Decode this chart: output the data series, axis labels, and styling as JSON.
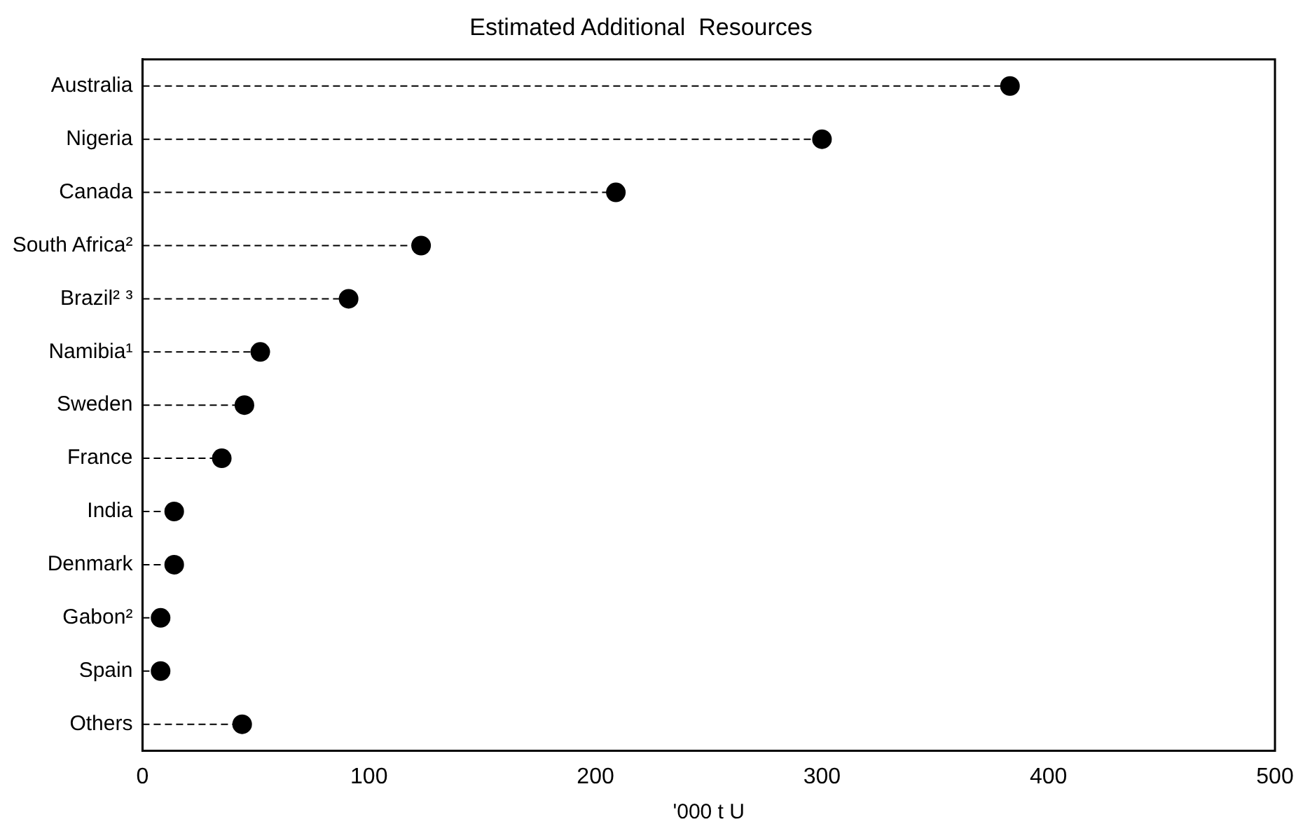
{
  "chart_data": {
    "type": "lollipop",
    "orientation": "horizontal",
    "title": "Estimated Additional  Resources",
    "xlabel": "'000 t U",
    "categories": [
      "Australia",
      "Nigeria",
      "Canada",
      "South Africa²",
      "Brazil² ³",
      "Namibia¹",
      "Sweden",
      "France",
      "India",
      "Denmark",
      "Gabon²",
      "Spain",
      "Others"
    ],
    "values": [
      383,
      300,
      209,
      123,
      91,
      52,
      45,
      35,
      14,
      14,
      8,
      8,
      44
    ],
    "color": "#000000",
    "marker": "circle",
    "line_style": "dashed",
    "xlim": [
      0,
      500
    ],
    "xticks": [
      0,
      100,
      200,
      300,
      400,
      500
    ],
    "grid": false,
    "legend": false
  }
}
